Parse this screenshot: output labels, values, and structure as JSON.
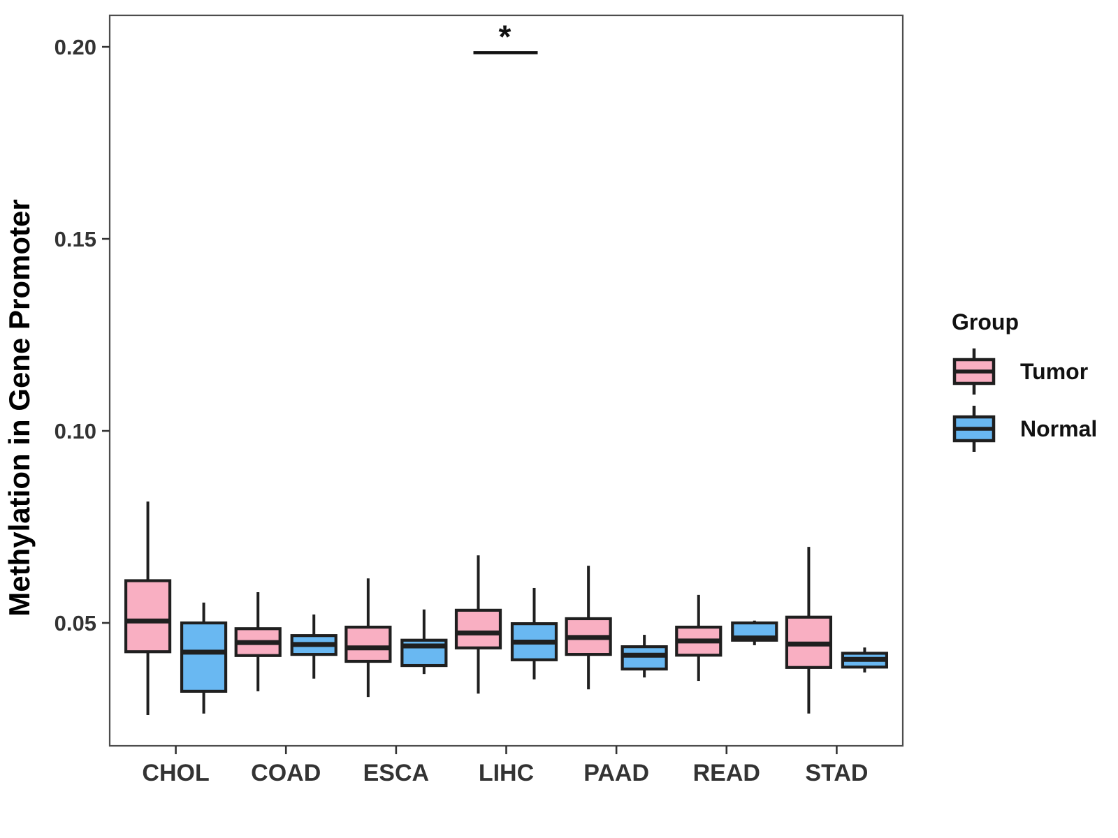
{
  "figure": {
    "background": "#FFFFFF"
  },
  "colors": {
    "tumor_fill": "#F9AFC2",
    "normal_fill": "#69B8F2",
    "box_border": "#1F1F1F",
    "panel_border": "#4D4D4D",
    "tick_text": "#333333",
    "title_text": "#000000"
  },
  "chart_data": {
    "type": "boxplot",
    "title": "",
    "xlabel": "",
    "ylabel": "Methylation in Gene Promoter",
    "categories": [
      "CHOL",
      "COAD",
      "ESCA",
      "LIHC",
      "PAAD",
      "READ",
      "STAD"
    ],
    "ylim": [
      0.018,
      0.2082
    ],
    "yticks": [
      {
        "value": 0.05,
        "label": "0.05"
      },
      {
        "value": 0.1,
        "label": "0.10"
      },
      {
        "value": 0.15,
        "label": "0.15"
      },
      {
        "value": 0.2,
        "label": "0.20"
      }
    ],
    "grid": false,
    "legend": {
      "title": "Group",
      "position": "right"
    },
    "series": [
      {
        "name": "Tumor",
        "fill": "#F9AFC2",
        "boxes": [
          {
            "category": "CHOL",
            "min": 0.026,
            "q1": 0.0425,
            "median": 0.0505,
            "q3": 0.061,
            "max": 0.0816
          },
          {
            "category": "COAD",
            "min": 0.0322,
            "q1": 0.0415,
            "median": 0.0449,
            "q3": 0.0485,
            "max": 0.058
          },
          {
            "category": "ESCA",
            "min": 0.0307,
            "q1": 0.04,
            "median": 0.0435,
            "q3": 0.0489,
            "max": 0.0616
          },
          {
            "category": "LIHC",
            "min": 0.0316,
            "q1": 0.0435,
            "median": 0.0474,
            "q3": 0.0533,
            "max": 0.0676
          },
          {
            "category": "PAAD",
            "min": 0.0327,
            "q1": 0.0418,
            "median": 0.0462,
            "q3": 0.0511,
            "max": 0.0649
          },
          {
            "category": "READ",
            "min": 0.0349,
            "q1": 0.0416,
            "median": 0.0453,
            "q3": 0.0489,
            "max": 0.0573
          },
          {
            "category": "STAD",
            "min": 0.0264,
            "q1": 0.0384,
            "median": 0.0445,
            "q3": 0.0515,
            "max": 0.0698
          }
        ]
      },
      {
        "name": "Normal",
        "fill": "#69B8F2",
        "boxes": [
          {
            "category": "CHOL",
            "min": 0.0264,
            "q1": 0.0322,
            "median": 0.0424,
            "q3": 0.05,
            "max": 0.0553
          },
          {
            "category": "COAD",
            "min": 0.0355,
            "q1": 0.0418,
            "median": 0.0444,
            "q3": 0.0467,
            "max": 0.0522
          },
          {
            "category": "ESCA",
            "min": 0.0367,
            "q1": 0.0389,
            "median": 0.044,
            "q3": 0.0455,
            "max": 0.0535
          },
          {
            "category": "LIHC",
            "min": 0.0353,
            "q1": 0.0404,
            "median": 0.045,
            "q3": 0.0498,
            "max": 0.0591
          },
          {
            "category": "PAAD",
            "min": 0.0358,
            "q1": 0.038,
            "median": 0.0416,
            "q3": 0.0438,
            "max": 0.0469
          },
          {
            "category": "READ",
            "min": 0.0442,
            "q1": 0.0455,
            "median": 0.0461,
            "q3": 0.05,
            "max": 0.0506
          },
          {
            "category": "STAD",
            "min": 0.0371,
            "q1": 0.0385,
            "median": 0.0405,
            "q3": 0.0421,
            "max": 0.0436
          }
        ]
      }
    ],
    "annotations": [
      {
        "type": "significance-bar",
        "category": "LIHC",
        "label": "*",
        "y": 0.1985
      }
    ]
  }
}
